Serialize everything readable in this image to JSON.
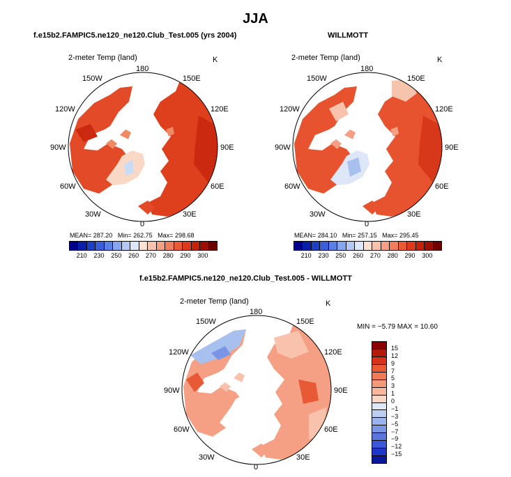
{
  "title": "JJA",
  "panels": [
    {
      "id": "model",
      "title": "f.e15b2.FAMPIC5.ne120_ne120.Club_Test.005 (yrs 2004)",
      "var_label": "2-meter Temp (land)",
      "units": "K",
      "stats": {
        "mean_label": "MEAN=",
        "mean": "287.20",
        "min_label": "Min=",
        "min": "262.75",
        "max_label": "Max=",
        "max": "298.68"
      }
    },
    {
      "id": "obs",
      "title": "WILLMOTT",
      "var_label": "2-meter Temp (land)",
      "units": "K",
      "stats": {
        "mean_label": "MEAN=",
        "mean": "284.10",
        "min_label": "Min=",
        "min": "257.15",
        "max_label": "Max=",
        "max": "295.45"
      }
    }
  ],
  "diff": {
    "title": "f.e15b2.FAMPIC5.ne120_ne120.Club_Test.005 - WILLMOTT",
    "var_label": "2-meter Temp (land)",
    "units": "K",
    "stats": "MIN =  −5.79  MAX =  10.60",
    "scale_labels": [
      "15",
      "12",
      "9",
      "7",
      "5",
      "3",
      "1",
      "0",
      "−1",
      "−3",
      "−5",
      "−7",
      "−9",
      "−12",
      "−15"
    ],
    "scale_colors": [
      "#8b0000",
      "#b41a0a",
      "#d8321a",
      "#ec5a34",
      "#f27a55",
      "#f5987a",
      "#f8b89e",
      "#fad6c6",
      "#dde9f7",
      "#bccff0",
      "#9cb4ec",
      "#7a95e4",
      "#5a76de",
      "#3a57d8",
      "#1f36c8",
      "#0a1898"
    ]
  },
  "abs_scale": {
    "labels": [
      "210",
      "230",
      "250",
      "260",
      "270",
      "280",
      "290",
      "300"
    ],
    "colors": [
      "#00008b",
      "#0a1fa8",
      "#1d3fc4",
      "#3a5fd8",
      "#5a80e6",
      "#86a6f0",
      "#b4c8f6",
      "#dde7f8",
      "#fbe0d4",
      "#f8c2ac",
      "#f5a084",
      "#f07e5c",
      "#e85a36",
      "#dc3a1a",
      "#c4220a",
      "#9c1004",
      "#6e0000"
    ]
  },
  "longitudes": {
    "n180": "180",
    "w150": "150W",
    "e150": "150E",
    "w120": "120W",
    "e120": "120E",
    "w90": "90W",
    "e90": "90E",
    "w60": "60W",
    "e60": "60E",
    "w30": "30W",
    "e30": "30E",
    "z0": "0"
  }
}
